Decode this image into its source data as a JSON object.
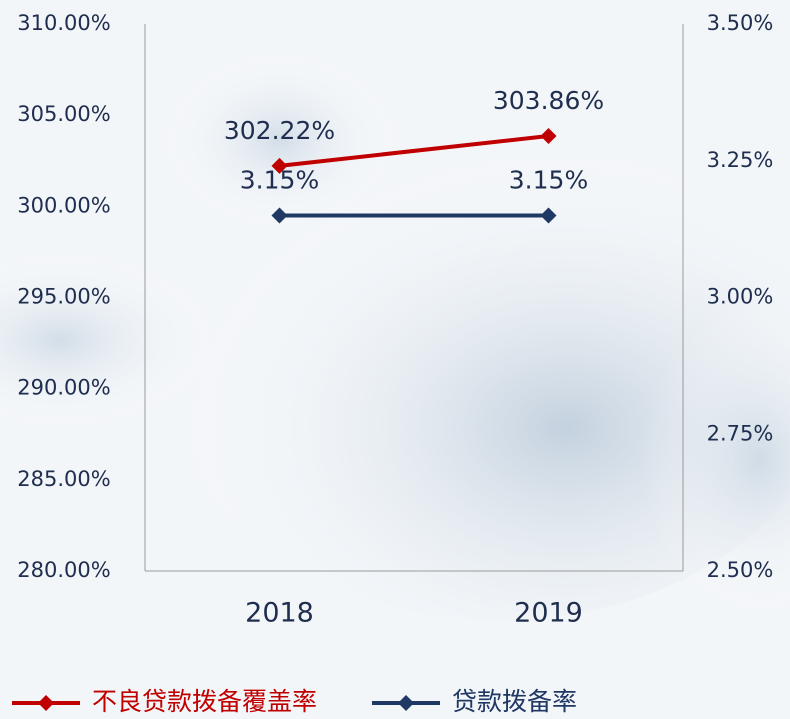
{
  "chart_data": {
    "type": "line",
    "categories": [
      "2018",
      "2019"
    ],
    "series": [
      {
        "name": "不良贷款拨备覆盖率",
        "color": "#c00000",
        "values": [
          302.22,
          303.86
        ],
        "value_labels": [
          "302.22%",
          "303.86%"
        ]
      },
      {
        "name": "贷款拨备率",
        "color": "#1f3864",
        "axis": "y2",
        "values": [
          3.15,
          3.15
        ],
        "value_labels": [
          "3.15%",
          "3.15%"
        ]
      }
    ],
    "ylim": [
      280,
      310
    ],
    "yticks": [
      {
        "value": 280,
        "label": "280.00%"
      },
      {
        "value": 285,
        "label": "285.00%"
      },
      {
        "value": 290,
        "label": "290.00%"
      },
      {
        "value": 295,
        "label": "295.00%"
      },
      {
        "value": 300,
        "label": "300.00%"
      },
      {
        "value": 305,
        "label": "305.00%"
      },
      {
        "value": 310,
        "label": "310.00%"
      }
    ],
    "y2lim": [
      2.5,
      3.5
    ],
    "y2ticks": [
      {
        "value": 2.5,
        "label": "2.50%"
      },
      {
        "value": 2.75,
        "label": "2.75%"
      },
      {
        "value": 3,
        "label": "3.00%"
      },
      {
        "value": 3.25,
        "label": "3.25%"
      },
      {
        "value": 3.5,
        "label": "3.50%"
      }
    ],
    "legend": "bottom"
  }
}
